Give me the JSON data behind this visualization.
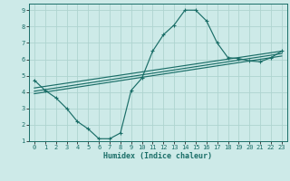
{
  "xlabel": "Humidex (Indice chaleur)",
  "bg_color": "#cdeae8",
  "grid_color": "#aed4d0",
  "line_color": "#1a6e68",
  "xlim": [
    -0.5,
    23.5
  ],
  "ylim": [
    1,
    9.4
  ],
  "xticks": [
    0,
    1,
    2,
    3,
    4,
    5,
    6,
    7,
    8,
    9,
    10,
    11,
    12,
    13,
    14,
    15,
    16,
    17,
    18,
    19,
    20,
    21,
    22,
    23
  ],
  "yticks": [
    1,
    2,
    3,
    4,
    5,
    6,
    7,
    8,
    9
  ],
  "curve1_x": [
    0,
    1,
    2,
    3,
    4,
    5,
    6,
    7,
    8,
    9,
    10,
    11,
    12,
    13,
    14,
    15,
    16,
    17,
    18,
    19,
    20,
    21,
    22,
    23
  ],
  "curve1_y": [
    4.72,
    4.1,
    3.65,
    3.0,
    2.2,
    1.75,
    1.15,
    1.15,
    1.5,
    4.1,
    4.85,
    6.5,
    7.5,
    8.1,
    9.0,
    9.0,
    8.35,
    7.0,
    6.1,
    6.05,
    5.9,
    5.85,
    6.1,
    6.5
  ],
  "curve2_x": [
    0,
    23
  ],
  "curve2_y": [
    4.25,
    6.5
  ],
  "curve3_x": [
    0,
    23
  ],
  "curve3_y": [
    3.9,
    6.2
  ],
  "curve4_x": [
    0,
    23
  ],
  "curve4_y": [
    4.05,
    6.35
  ]
}
